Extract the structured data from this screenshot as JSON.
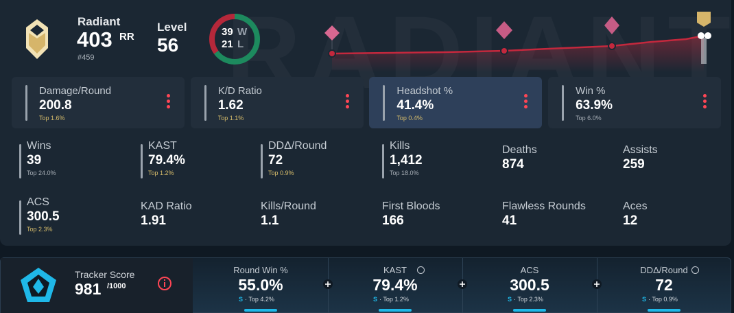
{
  "header": {
    "rank": "Radiant",
    "rr": 403,
    "rr_unit": "RR",
    "leaderboard": "#459",
    "level_label": "Level",
    "level": 56,
    "wins": 39,
    "wins_unit": "W",
    "losses": 21,
    "losses_unit": "L",
    "watermark": "RADIANT"
  },
  "cards": [
    {
      "name": "Damage/Round",
      "value": "200.8",
      "top": "Top 1.6%"
    },
    {
      "name": "K/D Ratio",
      "value": "1.62",
      "top": "Top 1.1%"
    },
    {
      "name": "Headshot %",
      "value": "41.4%",
      "top": "Top 0.4%"
    },
    {
      "name": "Win %",
      "value": "63.9%",
      "top": "Top 6.0%"
    }
  ],
  "stats": [
    {
      "name": "Wins",
      "value": "39",
      "top": "Top 24.0%"
    },
    {
      "name": "KAST",
      "value": "79.4%",
      "top": "Top 1.2%"
    },
    {
      "name": "DDΔ/Round",
      "value": "72",
      "top": "Top 0.9%"
    },
    {
      "name": "Kills",
      "value": "1,412",
      "top": "Top 18.0%"
    },
    {
      "name": "Deaths",
      "value": "874"
    },
    {
      "name": "Assists",
      "value": "259"
    },
    {
      "name": "ACS",
      "value": "300.5",
      "top": "Top 2.3%"
    },
    {
      "name": "KAD Ratio",
      "value": "1.91"
    },
    {
      "name": "Kills/Round",
      "value": "1.1"
    },
    {
      "name": "First Bloods",
      "value": "166"
    },
    {
      "name": "Flawless Rounds",
      "value": "41"
    },
    {
      "name": "Aces",
      "value": "12"
    }
  ],
  "tracker": {
    "label": "Tracker Score",
    "score": 981,
    "max": "/1000",
    "items": [
      {
        "name": "Round Win %",
        "value": "55.0%",
        "grade": "S",
        "top": "· Top 4.2%"
      },
      {
        "name": "KAST",
        "value": "79.4%",
        "grade": "S",
        "top": "· Top 1.2%"
      },
      {
        "name": "ACS",
        "value": "300.5",
        "grade": "S",
        "top": "· Top 2.3%"
      },
      {
        "name": "DDΔ/Round",
        "value": "72",
        "grade": "S",
        "top": "· Top 0.9%"
      }
    ]
  }
}
